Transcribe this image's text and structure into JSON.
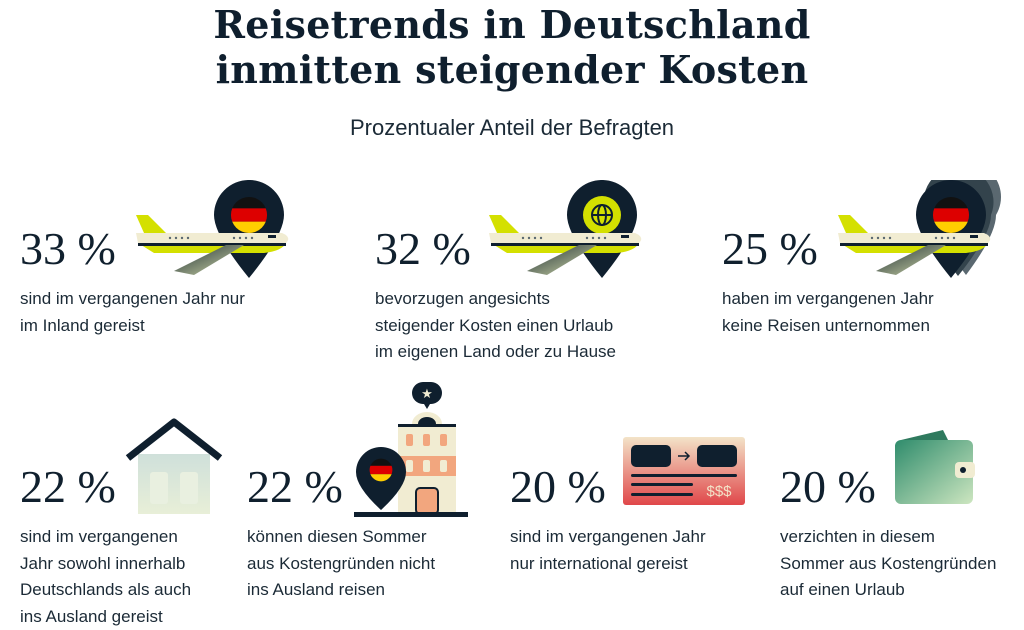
{
  "title_line1": "Reisetrends in Deutschland",
  "title_line2": "inmitten steigender Kosten",
  "subtitle": "Prozentualer Anteil der Befragten",
  "stats": [
    {
      "value": "33 %",
      "text": [
        "sind im vergangenen Jahr nur",
        "im Inland gereist"
      ],
      "icon": "airplane-germany-pin-icon"
    },
    {
      "value": "32 %",
      "text": [
        "bevorzugen angesichts",
        "steigender Kosten einen Urlaub",
        "im eigenen Land oder zu Hause"
      ],
      "icon": "airplane-globe-pin-icon"
    },
    {
      "value": "25 %",
      "text": [
        "haben im vergangenen Jahr",
        "keine Reisen unternommen"
      ],
      "icon": "airplane-stacked-germany-pins-icon"
    },
    {
      "value": "22 %",
      "text": [
        "sind im vergangenen",
        "Jahr sowohl innerhalb",
        "Deutschlands als auch",
        "ins Ausland gereist"
      ],
      "icon": "house-icon"
    },
    {
      "value": "22 %",
      "text": [
        "können diesen Sommer",
        "aus Kostengründen nicht",
        "ins Ausland reisen"
      ],
      "icon": "hotel-germany-pin-icon"
    },
    {
      "value": "20 %",
      "text": [
        "sind im vergangenen Jahr",
        "nur international gereist"
      ],
      "icon": "ticket-icon"
    },
    {
      "value": "20 %",
      "text": [
        "verzichten in diesem",
        "Sommer aus Kostengründen",
        "auf einen Urlaub"
      ],
      "icon": "wallet-icon"
    }
  ],
  "ticket_price": "$$$",
  "colors": {
    "navy": "#0f1f2e",
    "lime": "#d4e000",
    "cream": "#f1ecd2",
    "salmon": "#f2a67e",
    "red": "#e04a4a",
    "green": "#3f9a78"
  }
}
